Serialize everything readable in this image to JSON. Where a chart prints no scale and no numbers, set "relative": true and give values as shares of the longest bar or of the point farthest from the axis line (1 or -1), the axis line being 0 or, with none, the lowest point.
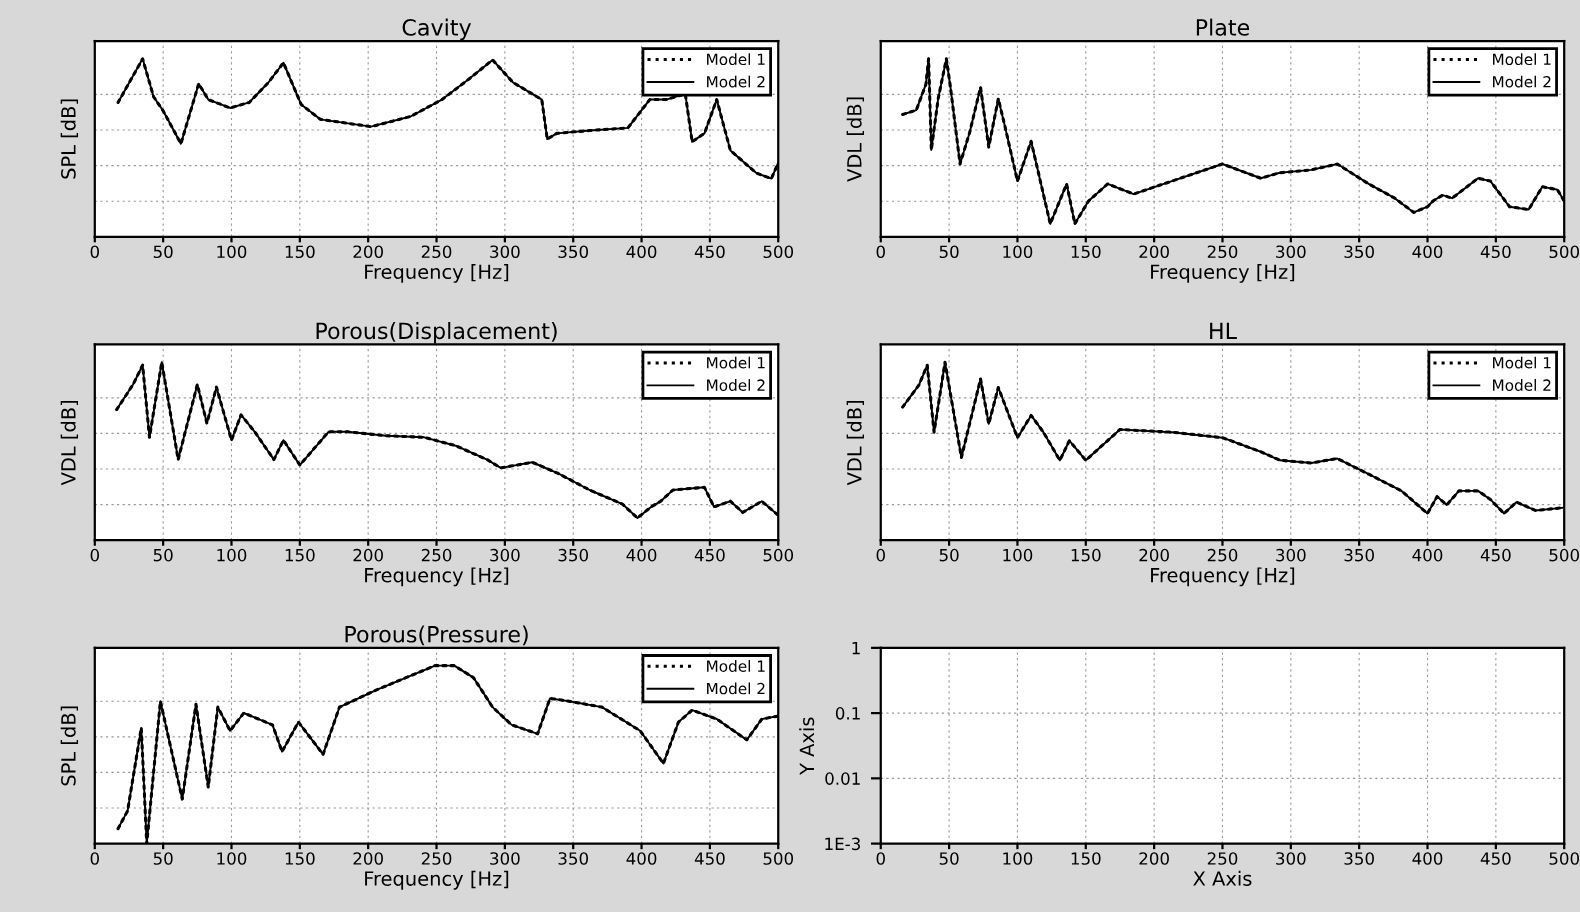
{
  "chart_data": [
    {
      "type": "line",
      "title": "Cavity",
      "xlabel": "Frequency [Hz]",
      "ylabel": "SPL [dB]",
      "relative": true,
      "xlim": [
        0,
        500
      ],
      "xticks": [
        0,
        50,
        100,
        150,
        200,
        250,
        300,
        350,
        400,
        450,
        500
      ],
      "grid": true,
      "legend": "top right",
      "x": [
        17,
        35,
        43,
        50,
        63,
        76,
        83,
        99,
        113,
        127,
        138,
        151,
        165,
        202,
        231,
        254,
        273,
        291,
        306,
        320,
        327,
        331,
        338,
        362,
        390,
        406,
        418,
        432,
        437,
        446,
        455,
        465,
        484,
        495,
        500
      ],
      "series": [
        {
          "name": "Model 1",
          "color": "#000000",
          "line_style": "dotted",
          "values": [
            0.755,
            1.0,
            0.787,
            0.708,
            0.523,
            0.86,
            0.771,
            0.724,
            0.755,
            0.867,
            0.978,
            0.743,
            0.66,
            0.619,
            0.676,
            0.771,
            0.882,
            0.994,
            0.867,
            0.803,
            0.771,
            0.549,
            0.581,
            0.597,
            0.612,
            0.771,
            0.771,
            0.803,
            0.534,
            0.581,
            0.771,
            0.485,
            0.358,
            0.327,
            0.416
          ]
        },
        {
          "name": "Model 2",
          "color": "#000000",
          "line_style": "solid",
          "values": [
            0.755,
            1.0,
            0.787,
            0.708,
            0.523,
            0.86,
            0.771,
            0.724,
            0.755,
            0.867,
            0.978,
            0.743,
            0.66,
            0.619,
            0.676,
            0.771,
            0.882,
            0.994,
            0.867,
            0.803,
            0.771,
            0.549,
            0.581,
            0.597,
            0.612,
            0.771,
            0.771,
            0.803,
            0.534,
            0.581,
            0.771,
            0.485,
            0.358,
            0.327,
            0.416
          ]
        }
      ]
    },
    {
      "type": "line",
      "title": "Plate",
      "xlabel": "Frequency [Hz]",
      "ylabel": "VDL [dB]",
      "relative": true,
      "xlim": [
        0,
        500
      ],
      "xticks": [
        0,
        50,
        100,
        150,
        200,
        250,
        300,
        350,
        400,
        450,
        500
      ],
      "grid": true,
      "legend": "top right",
      "x": [
        16,
        26,
        33,
        35,
        37,
        42,
        48,
        51,
        58,
        65,
        73,
        79,
        86,
        91,
        100,
        110,
        124,
        136,
        142,
        152,
        166,
        185,
        213,
        250,
        278,
        292,
        315,
        334,
        357,
        376,
        390,
        400,
        404,
        411,
        418,
        437,
        446,
        460,
        474,
        484,
        495,
        500
      ],
      "series": [
        {
          "name": "Model 1",
          "color": "#000000",
          "line_style": "dotted",
          "values": [
            0.687,
            0.712,
            0.856,
            1.0,
            0.488,
            0.776,
            1.0,
            0.84,
            0.409,
            0.585,
            0.84,
            0.504,
            0.776,
            0.616,
            0.313,
            0.537,
            0.073,
            0.297,
            0.073,
            0.201,
            0.297,
            0.24,
            0.313,
            0.409,
            0.329,
            0.36,
            0.376,
            0.409,
            0.297,
            0.217,
            0.137,
            0.169,
            0.201,
            0.234,
            0.217,
            0.329,
            0.313,
            0.169,
            0.153,
            0.281,
            0.265,
            0.201
          ]
        },
        {
          "name": "Model 2",
          "color": "#000000",
          "line_style": "solid",
          "values": [
            0.687,
            0.712,
            0.856,
            1.0,
            0.488,
            0.776,
            1.0,
            0.84,
            0.409,
            0.585,
            0.84,
            0.504,
            0.776,
            0.616,
            0.313,
            0.537,
            0.073,
            0.297,
            0.073,
            0.201,
            0.297,
            0.24,
            0.313,
            0.409,
            0.329,
            0.36,
            0.376,
            0.409,
            0.297,
            0.217,
            0.137,
            0.169,
            0.201,
            0.234,
            0.217,
            0.329,
            0.313,
            0.169,
            0.153,
            0.281,
            0.265,
            0.201
          ]
        }
      ]
    },
    {
      "type": "line",
      "title": "Porous(Displacement)",
      "xlabel": "Frequency [Hz]",
      "ylabel": "VDL [dB]",
      "relative": true,
      "xlim": [
        0,
        500
      ],
      "xticks": [
        0,
        50,
        100,
        150,
        200,
        250,
        300,
        350,
        400,
        450,
        500
      ],
      "grid": true,
      "legend": "top right",
      "x": [
        16,
        28,
        35,
        40,
        49,
        61,
        75,
        82,
        89,
        100,
        107,
        117,
        131,
        138,
        150,
        171,
        185,
        213,
        241,
        264,
        287,
        297,
        320,
        339,
        362,
        386,
        397,
        407,
        414,
        423,
        446,
        453,
        465,
        474,
        488,
        500
      ],
      "series": [
        {
          "name": "Model 1",
          "color": "#000000",
          "line_style": "dotted",
          "values": [
            0.734,
            0.875,
            0.984,
            0.578,
            1.0,
            0.453,
            0.875,
            0.657,
            0.86,
            0.562,
            0.704,
            0.609,
            0.453,
            0.562,
            0.422,
            0.609,
            0.609,
            0.587,
            0.578,
            0.531,
            0.453,
            0.406,
            0.438,
            0.375,
            0.282,
            0.203,
            0.125,
            0.187,
            0.219,
            0.282,
            0.297,
            0.187,
            0.219,
            0.156,
            0.219,
            0.14
          ]
        },
        {
          "name": "Model 2",
          "color": "#000000",
          "line_style": "solid",
          "values": [
            0.734,
            0.875,
            0.984,
            0.578,
            1.0,
            0.453,
            0.875,
            0.657,
            0.86,
            0.562,
            0.704,
            0.609,
            0.453,
            0.562,
            0.422,
            0.609,
            0.609,
            0.587,
            0.578,
            0.531,
            0.453,
            0.406,
            0.438,
            0.375,
            0.282,
            0.203,
            0.125,
            0.187,
            0.219,
            0.282,
            0.297,
            0.187,
            0.219,
            0.156,
            0.219,
            0.14
          ]
        }
      ]
    },
    {
      "type": "line",
      "title": "HL",
      "xlabel": "Frequency [Hz]",
      "ylabel": "VDL [dB]",
      "relative": true,
      "xlim": [
        0,
        500
      ],
      "xticks": [
        0,
        50,
        100,
        150,
        200,
        250,
        300,
        350,
        400,
        450,
        500
      ],
      "grid": true,
      "legend": "top right",
      "x": [
        16,
        28,
        34,
        39,
        47,
        59,
        73,
        79,
        86,
        100,
        110,
        119,
        131,
        138,
        150,
        175,
        213,
        250,
        278,
        292,
        315,
        334,
        357,
        381,
        400,
        407,
        414,
        423,
        437,
        446,
        456,
        465,
        479,
        500
      ],
      "series": [
        {
          "name": "Model 1",
          "color": "#000000",
          "line_style": "dotted",
          "values": [
            0.748,
            0.873,
            0.983,
            0.607,
            1.0,
            0.465,
            0.906,
            0.654,
            0.858,
            0.576,
            0.701,
            0.607,
            0.449,
            0.559,
            0.449,
            0.622,
            0.607,
            0.576,
            0.497,
            0.449,
            0.434,
            0.459,
            0.371,
            0.277,
            0.15,
            0.245,
            0.198,
            0.277,
            0.277,
            0.229,
            0.15,
            0.214,
            0.167,
            0.183
          ]
        },
        {
          "name": "Model 2",
          "color": "#000000",
          "line_style": "solid",
          "values": [
            0.748,
            0.873,
            0.983,
            0.607,
            1.0,
            0.465,
            0.906,
            0.654,
            0.858,
            0.576,
            0.701,
            0.607,
            0.449,
            0.559,
            0.449,
            0.622,
            0.607,
            0.576,
            0.497,
            0.449,
            0.434,
            0.459,
            0.371,
            0.277,
            0.15,
            0.245,
            0.198,
            0.277,
            0.277,
            0.229,
            0.15,
            0.214,
            0.167,
            0.183
          ]
        }
      ]
    },
    {
      "type": "line",
      "title": "Porous(Pressure)",
      "xlabel": "Frequency [Hz]",
      "ylabel": "SPL [dB]",
      "relative": true,
      "xlim": [
        0,
        500
      ],
      "xticks": [
        0,
        50,
        100,
        150,
        200,
        250,
        300,
        350,
        400,
        450,
        500
      ],
      "grid": true,
      "legend": "top right",
      "x": [
        17,
        24,
        34,
        38,
        48,
        64,
        74,
        83,
        90,
        99,
        109,
        130,
        137,
        149,
        167,
        179,
        207,
        249,
        263,
        277,
        291,
        305,
        324,
        333,
        347,
        371,
        399,
        416,
        427,
        437,
        455,
        477,
        488,
        500
      ],
      "series": [
        {
          "name": "Model 1",
          "color": "#000000",
          "line_style": "dotted",
          "values": [
            0.084,
            0.184,
            0.65,
            0.0,
            0.8,
            0.25,
            0.783,
            0.317,
            0.767,
            0.634,
            0.734,
            0.667,
            0.517,
            0.683,
            0.501,
            0.767,
            0.867,
            1.0,
            1.0,
            0.933,
            0.767,
            0.667,
            0.617,
            0.816,
            0.8,
            0.767,
            0.634,
            0.45,
            0.683,
            0.75,
            0.7,
            0.583,
            0.7,
            0.717
          ]
        },
        {
          "name": "Model 2",
          "color": "#000000",
          "line_style": "solid",
          "values": [
            0.084,
            0.184,
            0.65,
            0.0,
            0.8,
            0.25,
            0.783,
            0.317,
            0.767,
            0.634,
            0.734,
            0.667,
            0.517,
            0.683,
            0.501,
            0.767,
            0.867,
            1.0,
            1.0,
            0.933,
            0.767,
            0.667,
            0.617,
            0.816,
            0.8,
            0.767,
            0.634,
            0.45,
            0.683,
            0.75,
            0.7,
            0.583,
            0.7,
            0.717
          ]
        }
      ]
    },
    {
      "type": "line",
      "xlabel": "X Axis",
      "ylabel": "Y Axis",
      "log": "y",
      "xlim": [
        0,
        500
      ],
      "xticks": [
        0,
        50,
        100,
        150,
        200,
        250,
        300,
        350,
        400,
        450,
        500
      ],
      "ylim": [
        0.001,
        1
      ],
      "yticks": [
        {
          "value": 0.001,
          "label": "1E-3"
        },
        0.01,
        0.1,
        1
      ],
      "grid": true
    }
  ]
}
